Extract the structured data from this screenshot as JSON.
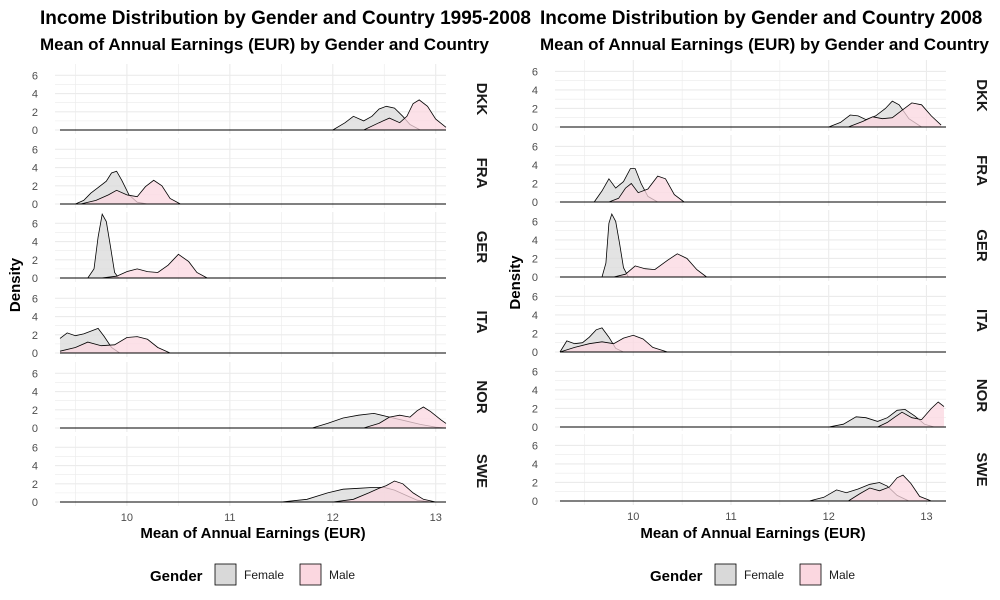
{
  "colors": {
    "female_fill": "#d9d9d9",
    "male_fill": "#fbd7e0",
    "outline": "#000000",
    "grid": "#ebebeb"
  },
  "chart_data": [
    {
      "type": "area",
      "title": "Income Distribution by Gender and Country 1995-2008",
      "subtitle": "Mean of Annual Earnings (EUR) by Gender and Country",
      "xlabel": "Mean of Annual Earnings (EUR)",
      "ylabel": "Density",
      "xlim": [
        9.35,
        13.1
      ],
      "ylim": [
        0,
        6.8
      ],
      "x_ticks": [
        10,
        11,
        12,
        13
      ],
      "y_ticks": [
        0,
        2,
        4,
        6
      ],
      "grid": true,
      "legend": {
        "title": "Gender",
        "position": "bottom",
        "entries": [
          "Female",
          "Male"
        ]
      },
      "facets": [
        {
          "label": "DKK",
          "series": [
            {
              "name": "Female",
              "x": [
                12.0,
                12.12,
                12.2,
                12.3,
                12.38,
                12.45,
                12.52,
                12.6,
                12.68,
                12.75,
                12.85
              ],
              "y": [
                0,
                0.8,
                1.5,
                1.0,
                1.5,
                2.3,
                2.6,
                2.4,
                1.5,
                0.6,
                0
              ]
            },
            {
              "name": "Male",
              "x": [
                12.3,
                12.45,
                12.55,
                12.65,
                12.72,
                12.78,
                12.84,
                12.92,
                13.0,
                13.1
              ],
              "y": [
                0,
                0.8,
                1.3,
                0.8,
                1.5,
                2.9,
                3.3,
                2.6,
                1.2,
                0.3
              ]
            }
          ]
        },
        {
          "label": "FRA",
          "series": [
            {
              "name": "Female",
              "x": [
                9.5,
                9.58,
                9.65,
                9.72,
                9.8,
                9.85,
                9.9,
                9.95,
                10.02,
                10.1,
                10.2
              ],
              "y": [
                0,
                0.4,
                1.2,
                1.8,
                2.5,
                3.4,
                3.6,
                2.6,
                1.0,
                0.2,
                0
              ]
            },
            {
              "name": "Male",
              "x": [
                9.55,
                9.7,
                9.82,
                9.9,
                10.0,
                10.1,
                10.18,
                10.26,
                10.34,
                10.42,
                10.52
              ],
              "y": [
                0,
                0.4,
                1.0,
                1.5,
                1.0,
                0.8,
                1.9,
                2.6,
                2.0,
                0.6,
                0
              ]
            }
          ]
        },
        {
          "label": "GER",
          "series": [
            {
              "name": "Female",
              "x": [
                9.62,
                9.68,
                9.72,
                9.76,
                9.8,
                9.84,
                9.88,
                9.92
              ],
              "y": [
                0,
                1.0,
                4.5,
                7.0,
                6.2,
                3.5,
                0.6,
                0
              ]
            },
            {
              "name": "Male",
              "x": [
                9.75,
                9.9,
                10.0,
                10.1,
                10.2,
                10.3,
                10.4,
                10.5,
                10.6,
                10.68,
                10.78
              ],
              "y": [
                0,
                0.2,
                0.7,
                1.0,
                0.7,
                0.6,
                1.4,
                2.6,
                1.8,
                0.6,
                0
              ]
            }
          ]
        },
        {
          "label": "ITA",
          "series": [
            {
              "name": "Female",
              "x": [
                9.35,
                9.42,
                9.5,
                9.58,
                9.65,
                9.72,
                9.78,
                9.85,
                9.93
              ],
              "y": [
                1.6,
                2.2,
                1.9,
                2.1,
                2.4,
                2.7,
                1.8,
                0.6,
                0
              ]
            },
            {
              "name": "Male",
              "x": [
                9.35,
                9.5,
                9.62,
                9.75,
                9.88,
                10.0,
                10.1,
                10.2,
                10.3,
                10.42
              ],
              "y": [
                0.2,
                0.6,
                1.2,
                0.8,
                0.9,
                1.7,
                1.8,
                1.5,
                0.6,
                0
              ]
            }
          ]
        },
        {
          "label": "NOR",
          "series": [
            {
              "name": "Female",
              "x": [
                11.8,
                11.95,
                12.1,
                12.25,
                12.4,
                12.55,
                12.7,
                12.85,
                13.0,
                13.1
              ],
              "y": [
                0,
                0.5,
                1.1,
                1.4,
                1.6,
                1.2,
                0.8,
                0.4,
                0.1,
                0
              ]
            },
            {
              "name": "Male",
              "x": [
                12.3,
                12.45,
                12.55,
                12.65,
                12.75,
                12.82,
                12.88,
                12.95,
                13.05,
                13.1
              ],
              "y": [
                0,
                0.5,
                1.2,
                1.4,
                1.2,
                1.9,
                2.3,
                1.8,
                0.9,
                0.5
              ]
            }
          ]
        },
        {
          "label": "SWE",
          "series": [
            {
              "name": "Female",
              "x": [
                11.5,
                11.75,
                11.95,
                12.1,
                12.25,
                12.4,
                12.5,
                12.6,
                12.7,
                12.82,
                12.95
              ],
              "y": [
                0,
                0.3,
                1.0,
                1.4,
                1.5,
                1.6,
                1.6,
                1.3,
                0.8,
                0.2,
                0
              ]
            },
            {
              "name": "Male",
              "x": [
                12.0,
                12.2,
                12.35,
                12.45,
                12.52,
                12.6,
                12.68,
                12.78,
                12.88,
                13.0
              ],
              "y": [
                0,
                0.3,
                1.0,
                1.5,
                1.8,
                2.3,
                2.0,
                1.0,
                0.3,
                0
              ]
            }
          ]
        }
      ]
    },
    {
      "type": "area",
      "title": "Income Distribution by Gender and Country 2008",
      "subtitle": "Mean of Annual Earnings (EUR) by Gender and Country",
      "xlabel": "Mean of Annual Earnings (EUR)",
      "ylabel": "Density",
      "xlim": [
        9.25,
        13.2
      ],
      "ylim": [
        0,
        6.8
      ],
      "x_ticks": [
        10,
        11,
        12,
        13
      ],
      "y_ticks": [
        0,
        2,
        4,
        6
      ],
      "grid": true,
      "legend": {
        "title": "Gender",
        "position": "bottom",
        "entries": [
          "Female",
          "Male"
        ]
      },
      "facets": [
        {
          "label": "DKK",
          "series": [
            {
              "name": "Female",
              "x": [
                12.0,
                12.12,
                12.22,
                12.3,
                12.38,
                12.48,
                12.58,
                12.65,
                12.72,
                12.82,
                12.95
              ],
              "y": [
                0,
                0.5,
                1.3,
                1.2,
                0.8,
                1.2,
                2.0,
                2.8,
                2.4,
                0.9,
                0
              ]
            },
            {
              "name": "Male",
              "x": [
                12.2,
                12.35,
                12.45,
                12.55,
                12.65,
                12.75,
                12.85,
                12.95,
                13.05,
                13.15
              ],
              "y": [
                0,
                0.6,
                1.1,
                0.9,
                1.0,
                1.8,
                2.6,
                2.4,
                1.2,
                0.2
              ]
            }
          ]
        },
        {
          "label": "FRA",
          "series": [
            {
              "name": "Female",
              "x": [
                9.6,
                9.68,
                9.75,
                9.82,
                9.9,
                9.97,
                10.02,
                10.08,
                10.15,
                10.25
              ],
              "y": [
                0,
                1.2,
                2.5,
                1.5,
                2.2,
                3.6,
                3.6,
                2.0,
                0.6,
                0
              ]
            },
            {
              "name": "Male",
              "x": [
                9.75,
                9.85,
                9.92,
                9.98,
                10.05,
                10.15,
                10.25,
                10.33,
                10.42,
                10.52
              ],
              "y": [
                0,
                0.4,
                1.5,
                2.0,
                1.0,
                1.4,
                2.8,
                2.5,
                0.8,
                0
              ]
            }
          ]
        },
        {
          "label": "GER",
          "series": [
            {
              "name": "Female",
              "x": [
                9.68,
                9.72,
                9.75,
                9.78,
                9.82,
                9.86,
                9.9,
                9.95
              ],
              "y": [
                0,
                1.5,
                5.8,
                6.8,
                6.0,
                3.6,
                1.0,
                0
              ]
            },
            {
              "name": "Male",
              "x": [
                9.8,
                9.92,
                10.02,
                10.12,
                10.22,
                10.35,
                10.45,
                10.55,
                10.65,
                10.75
              ],
              "y": [
                0,
                0.3,
                1.2,
                0.9,
                0.8,
                1.8,
                2.5,
                2.0,
                0.8,
                0
              ]
            }
          ]
        },
        {
          "label": "ITA",
          "series": [
            {
              "name": "Female",
              "x": [
                9.25,
                9.32,
                9.4,
                9.48,
                9.55,
                9.62,
                9.68,
                9.75,
                9.82,
                9.9
              ],
              "y": [
                0,
                1.2,
                0.9,
                1.0,
                1.6,
                2.4,
                2.6,
                1.6,
                0.4,
                0
              ]
            },
            {
              "name": "Male",
              "x": [
                9.25,
                9.4,
                9.55,
                9.68,
                9.8,
                9.9,
                10.0,
                10.1,
                10.2,
                10.35
              ],
              "y": [
                0,
                0.5,
                0.9,
                1.1,
                0.9,
                1.5,
                1.8,
                1.4,
                0.5,
                0
              ]
            }
          ]
        },
        {
          "label": "NOR",
          "series": [
            {
              "name": "Female",
              "x": [
                12.0,
                12.15,
                12.28,
                12.38,
                12.5,
                12.6,
                12.7,
                12.78,
                12.88,
                12.98,
                13.08
              ],
              "y": [
                0,
                0.3,
                1.1,
                1.0,
                0.6,
                1.0,
                1.8,
                1.9,
                1.2,
                0.3,
                0
              ]
            },
            {
              "name": "Male",
              "x": [
                12.5,
                12.6,
                12.68,
                12.75,
                12.85,
                12.95,
                13.05,
                13.12,
                13.18
              ],
              "y": [
                0,
                0.5,
                1.1,
                1.6,
                1.0,
                0.8,
                2.0,
                2.7,
                2.2
              ]
            }
          ]
        },
        {
          "label": "SWE",
          "series": [
            {
              "name": "Female",
              "x": [
                11.8,
                11.95,
                12.08,
                12.18,
                12.3,
                12.42,
                12.52,
                12.6,
                12.7,
                12.82
              ],
              "y": [
                0,
                0.4,
                1.2,
                0.9,
                1.3,
                1.8,
                2.0,
                1.6,
                0.6,
                0
              ]
            },
            {
              "name": "Male",
              "x": [
                12.2,
                12.32,
                12.42,
                12.52,
                12.62,
                12.7,
                12.76,
                12.84,
                12.93,
                13.05
              ],
              "y": [
                0,
                0.8,
                1.4,
                1.1,
                1.5,
                2.5,
                2.8,
                1.9,
                0.5,
                0
              ]
            }
          ]
        }
      ]
    }
  ]
}
